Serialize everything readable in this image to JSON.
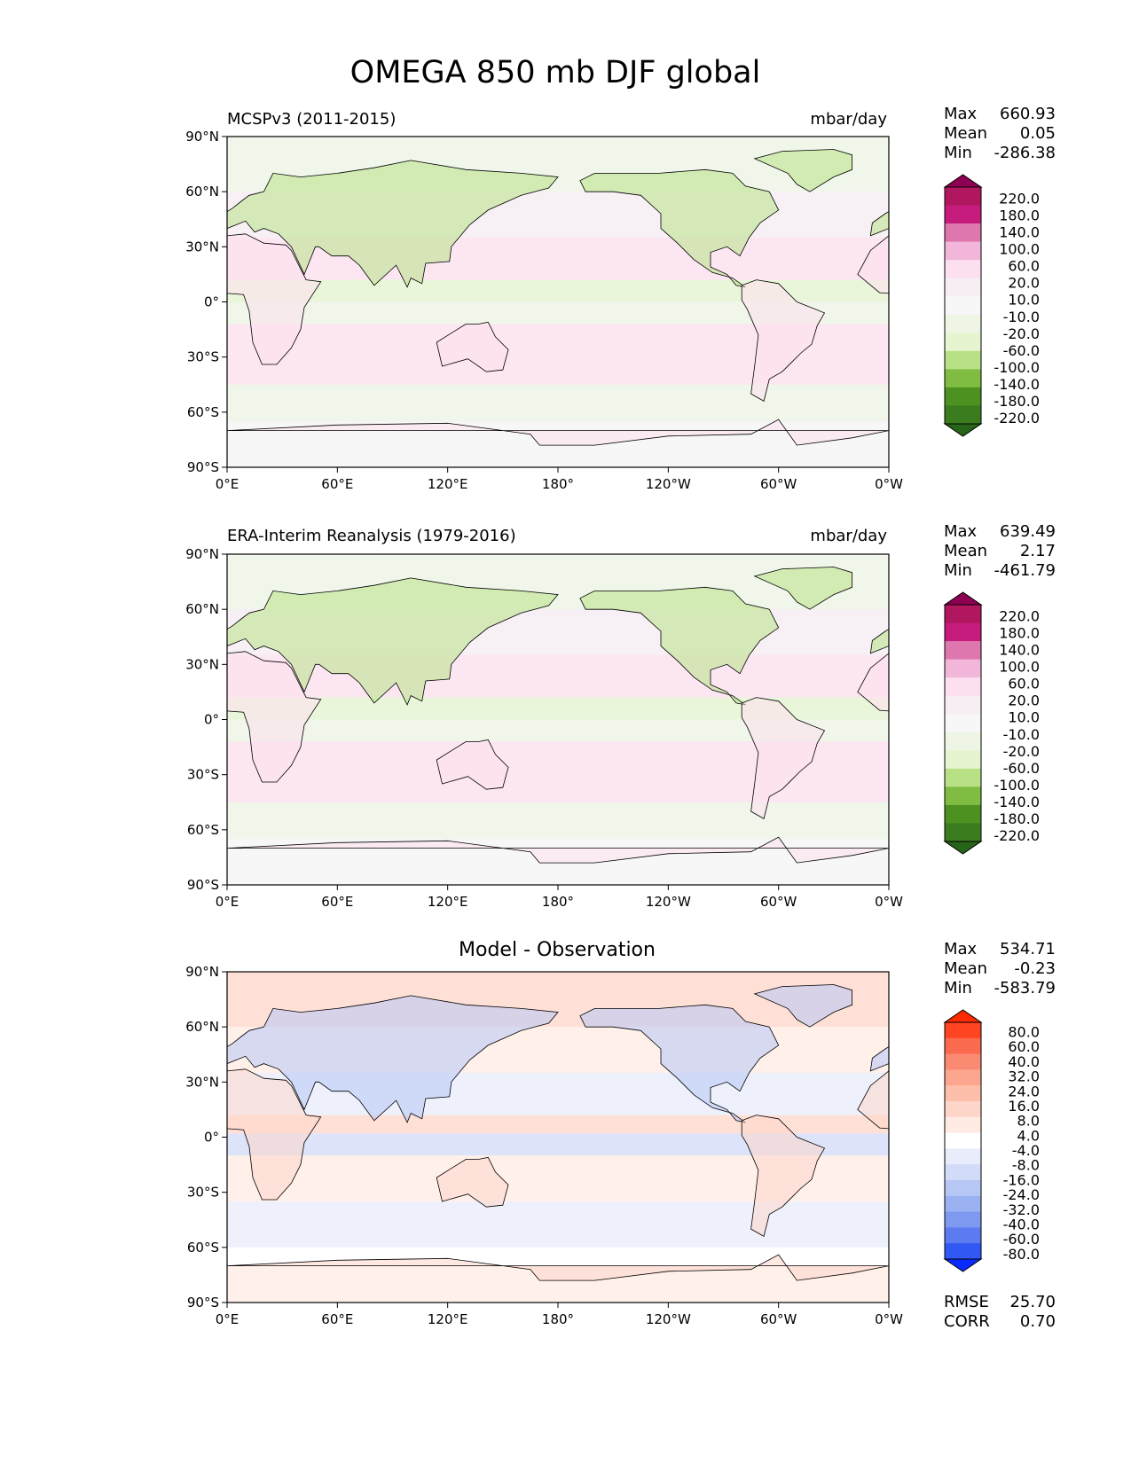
{
  "figure_title": "OMEGA 850 mb DJF global",
  "chart_data": [
    {
      "type": "heatmap",
      "title_left": "MCSPv3 (2011-2015)",
      "title_right": "mbar/day",
      "title_center": "",
      "xticks": [
        "0°E",
        "60°E",
        "120°E",
        "180°",
        "120°W",
        "60°W",
        "0°W"
      ],
      "yticks": [
        "90°N",
        "60°N",
        "30°N",
        "0°",
        "30°S",
        "60°S",
        "90°S"
      ],
      "xlim": [
        0,
        360
      ],
      "ylim": [
        -90,
        90
      ],
      "stats": [
        {
          "label": "Max",
          "value": "660.93"
        },
        {
          "label": "Mean",
          "value": "0.05"
        },
        {
          "label": "Min",
          "value": "-286.38"
        }
      ],
      "colorbar": {
        "levels": [
          "220.0",
          "180.0",
          "140.0",
          "100.0",
          "60.0",
          "20.0",
          "10.0",
          "-10.0",
          "-20.0",
          "-60.0",
          "-100.0",
          "-140.0",
          "-180.0",
          "-220.0"
        ],
        "colors": [
          "#8e0152",
          "#b0175e",
          "#c51b7d",
          "#de77ae",
          "#f1b6da",
          "#fde0ef",
          "#f7eef3",
          "#f7f7f7",
          "#eef5e4",
          "#e6f5d0",
          "#b8e186",
          "#7fbc41",
          "#4d9221",
          "#3b7d1e",
          "#276419"
        ]
      },
      "footer_stats": []
    },
    {
      "type": "heatmap",
      "title_left": "ERA-Interim Reanalysis (1979-2016)",
      "title_right": "mbar/day",
      "title_center": "",
      "xticks": [
        "0°E",
        "60°E",
        "120°E",
        "180°",
        "120°W",
        "60°W",
        "0°W"
      ],
      "yticks": [
        "90°N",
        "60°N",
        "30°N",
        "0°",
        "30°S",
        "60°S",
        "90°S"
      ],
      "xlim": [
        0,
        360
      ],
      "ylim": [
        -90,
        90
      ],
      "stats": [
        {
          "label": "Max",
          "value": "639.49"
        },
        {
          "label": "Mean",
          "value": "2.17"
        },
        {
          "label": "Min",
          "value": "-461.79"
        }
      ],
      "colorbar": {
        "levels": [
          "220.0",
          "180.0",
          "140.0",
          "100.0",
          "60.0",
          "20.0",
          "10.0",
          "-10.0",
          "-20.0",
          "-60.0",
          "-100.0",
          "-140.0",
          "-180.0",
          "-220.0"
        ],
        "colors": [
          "#8e0152",
          "#b0175e",
          "#c51b7d",
          "#de77ae",
          "#f1b6da",
          "#fde0ef",
          "#f7eef3",
          "#f7f7f7",
          "#eef5e4",
          "#e6f5d0",
          "#b8e186",
          "#7fbc41",
          "#4d9221",
          "#3b7d1e",
          "#276419"
        ]
      },
      "footer_stats": []
    },
    {
      "type": "heatmap",
      "title_left": "",
      "title_right": "",
      "title_center": "Model - Observation",
      "xticks": [
        "0°E",
        "60°E",
        "120°E",
        "180°",
        "120°W",
        "60°W",
        "0°W"
      ],
      "yticks": [
        "90°N",
        "60°N",
        "30°N",
        "0°",
        "30°S",
        "60°S",
        "90°S"
      ],
      "xlim": [
        0,
        360
      ],
      "ylim": [
        -90,
        90
      ],
      "stats": [
        {
          "label": "Max",
          "value": "534.71"
        },
        {
          "label": "Mean",
          "value": "-0.23"
        },
        {
          "label": "Min",
          "value": "-583.79"
        }
      ],
      "colorbar": {
        "levels": [
          "80.0",
          "60.0",
          "40.0",
          "32.0",
          "24.0",
          "16.0",
          "8.0",
          "4.0",
          "-4.0",
          "-8.0",
          "-16.0",
          "-24.0",
          "-32.0",
          "-40.0",
          "-60.0",
          "-80.0"
        ],
        "colors": [
          "#ff2a00",
          "#ff4422",
          "#f96a4f",
          "#fb8a72",
          "#fca58f",
          "#fdbfac",
          "#fed6c9",
          "#ffebe3",
          "#ffffff",
          "#e8ecfb",
          "#d2dbf8",
          "#b7c7f5",
          "#9ab1f2",
          "#7e99ef",
          "#5d7bf0",
          "#3158f2",
          "#0a2bff"
        ]
      },
      "footer_stats": [
        {
          "label": "RMSE",
          "value": "25.70"
        },
        {
          "label": "CORR",
          "value": "0.70"
        }
      ]
    }
  ]
}
